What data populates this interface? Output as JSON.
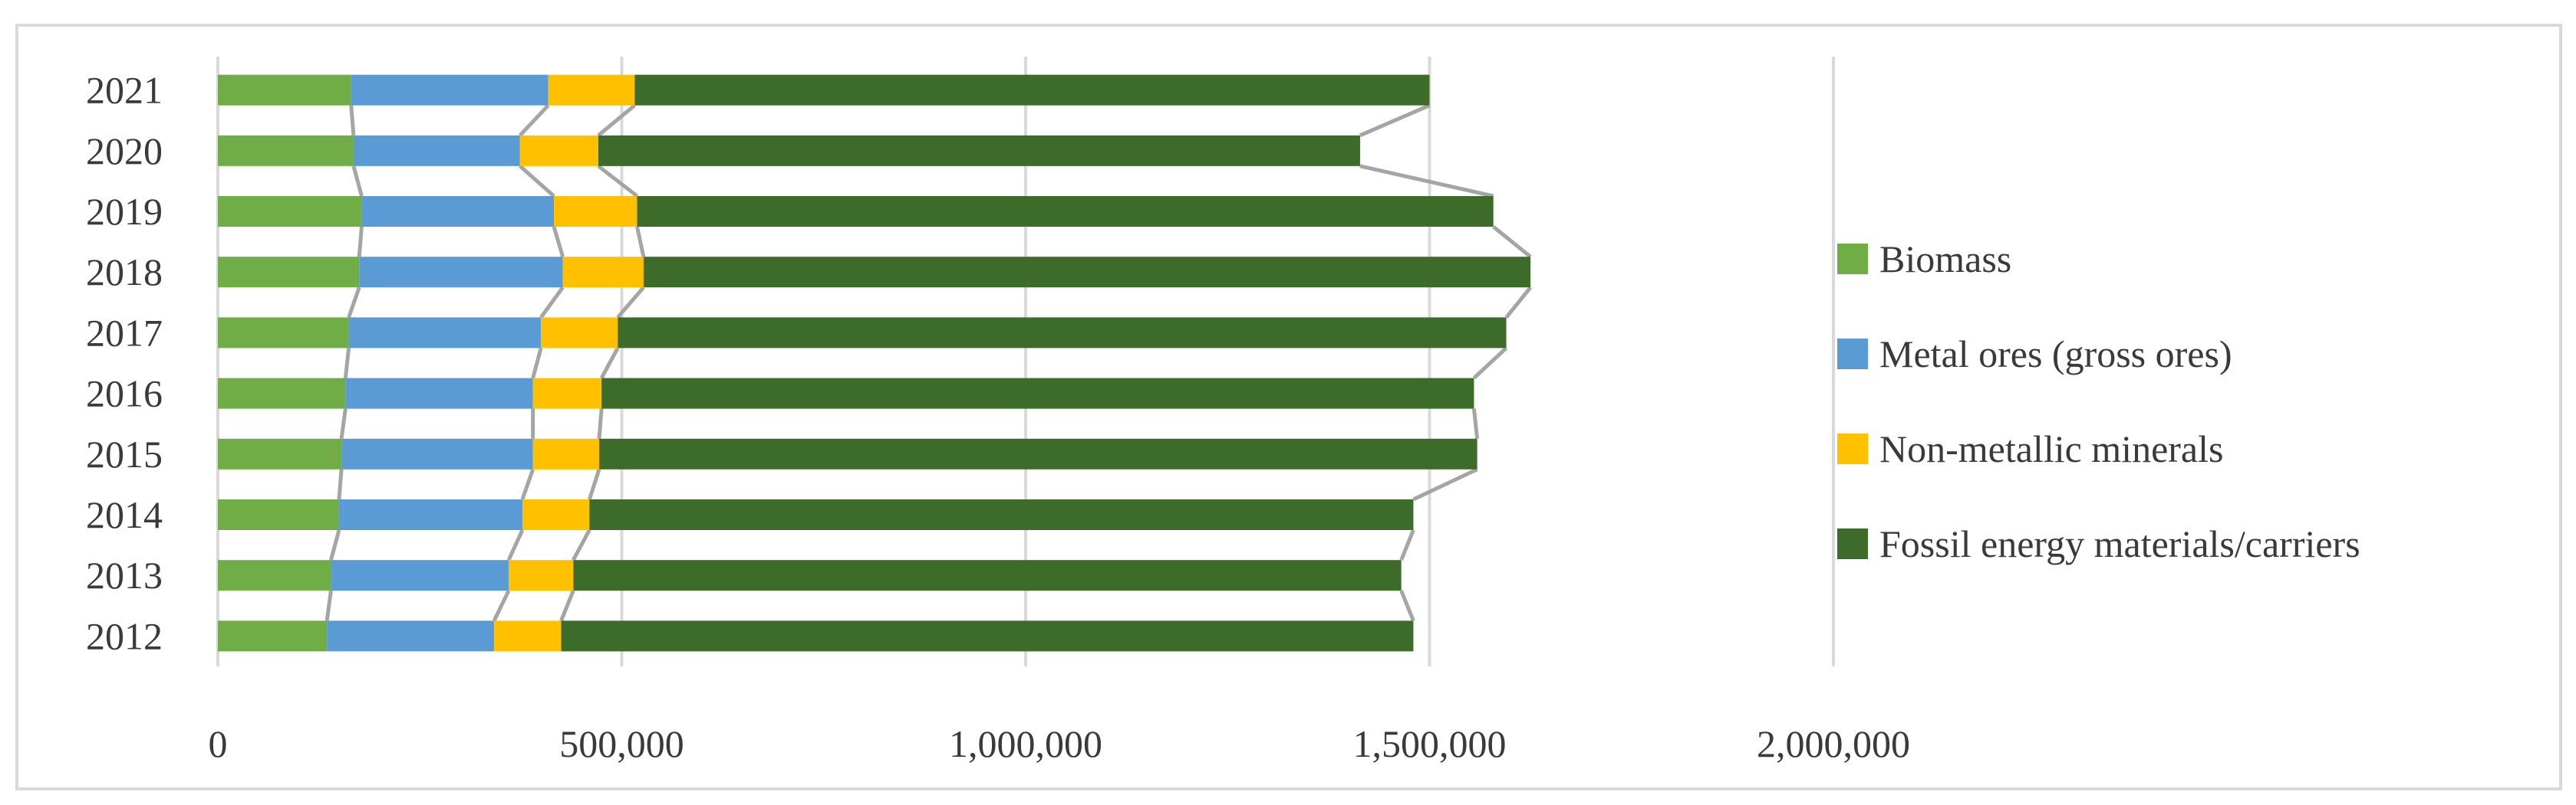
{
  "chart_data": {
    "type": "bar",
    "orientation": "horizontal",
    "stacked": true,
    "title": "",
    "xlabel": "",
    "ylabel": "",
    "categories": [
      "2012",
      "2013",
      "2014",
      "2015",
      "2016",
      "2017",
      "2018",
      "2019",
      "2020",
      "2021"
    ],
    "series": [
      {
        "name": "Biomass",
        "color": "#70ad47",
        "values": [
          135000,
          140000,
          150000,
          153000,
          158000,
          162000,
          175000,
          178000,
          168000,
          165000
        ]
      },
      {
        "name": "Metal ores (gross ores)",
        "color": "#5b9bd5",
        "values": [
          207000,
          220000,
          227000,
          237000,
          232000,
          238000,
          252000,
          238000,
          206000,
          244000
        ]
      },
      {
        "name": "Non-metallic minerals",
        "color": "#ffc000",
        "values": [
          83000,
          80000,
          83000,
          82000,
          85000,
          95000,
          100000,
          103000,
          97000,
          107000
        ]
      },
      {
        "name": "Fossil energy materials/carriers",
        "color": "#3d6b2a",
        "values": [
          1055000,
          1025000,
          1020000,
          1087000,
          1080000,
          1100000,
          1098000,
          1060000,
          943000,
          984000
        ]
      }
    ],
    "xlim": [
      0,
      2000000
    ],
    "xticks": [
      "0",
      "500,000",
      "1,000,000",
      "1,500,000",
      "2,000,000"
    ],
    "grid": true,
    "series_lines": true,
    "legend_position": "right"
  }
}
